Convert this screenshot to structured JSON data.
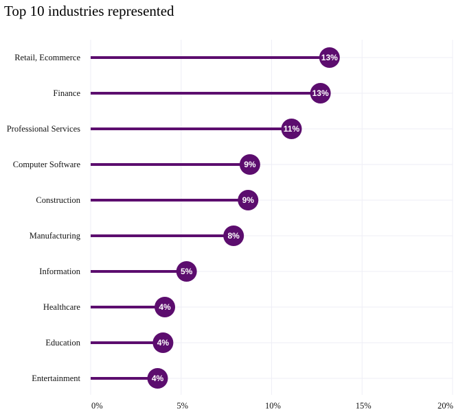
{
  "chart_data": {
    "type": "lollipop",
    "title": "Top 10 industries represented",
    "xlabel": "",
    "ylabel": "",
    "xlim": [
      0,
      20
    ],
    "x_ticks": [
      "0%",
      "5%",
      "10%",
      "15%",
      "20%"
    ],
    "grid": true,
    "color": "#5c0d6e",
    "categories": [
      "Retail, Ecommerce",
      "Finance",
      "Professional Services",
      "Computer Software",
      "Construction",
      "Manufacturing",
      "Information",
      "Healthcare",
      "Education",
      "Entertainment"
    ],
    "values": [
      13.2,
      12.7,
      11.1,
      8.8,
      8.7,
      7.9,
      5.3,
      4.1,
      4.0,
      3.7
    ],
    "data_labels": [
      "13%",
      "13%",
      "11%",
      "9%",
      "9%",
      "8%",
      "5%",
      "4%",
      "4%",
      "4%"
    ]
  }
}
